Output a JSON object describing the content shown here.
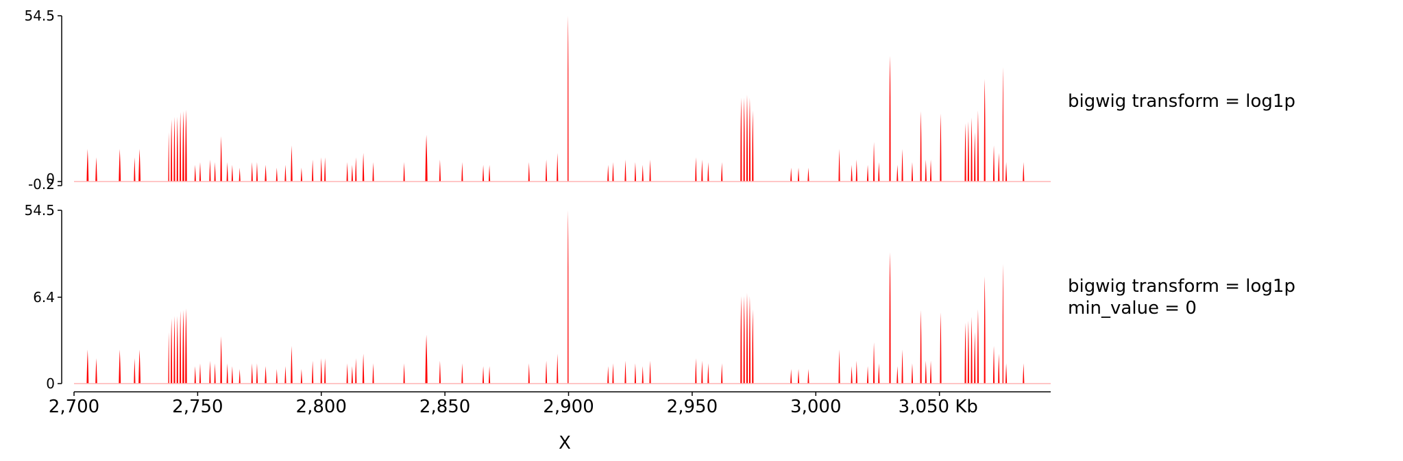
{
  "colors": {
    "signal": "#ff0000",
    "axis": "#000000",
    "baseline": "#ffb3b3"
  },
  "chart_data": {
    "type": "area",
    "x_unit": "Kb",
    "xlabel": "X",
    "xlim": [
      2700,
      3095
    ],
    "x_ticks": [
      {
        "value": 2700,
        "label": "2,700"
      },
      {
        "value": 2750,
        "label": "2,750"
      },
      {
        "value": 2800,
        "label": "2,800"
      },
      {
        "value": 2850,
        "label": "2,850"
      },
      {
        "value": 2900,
        "label": "2,900"
      },
      {
        "value": 2950,
        "label": "2,950"
      },
      {
        "value": 3000,
        "label": "3,000"
      },
      {
        "value": 3050,
        "label": "3,050 Kb"
      }
    ],
    "tracks": [
      {
        "label_lines": [
          "bigwig transform = log1p"
        ],
        "transform": "log1p",
        "ylim": [
          -0.2,
          54.5
        ],
        "y_ticks": [
          {
            "value": 54.5,
            "label": "54.5"
          },
          {
            "value": 0,
            "label": "0"
          },
          {
            "value": -0.2,
            "label": "-0.2"
          }
        ],
        "peaks": [
          [
            2705.5,
            0.4,
            1.2
          ],
          [
            2709,
            0.35,
            0.8
          ],
          [
            2718.5,
            0.4,
            1.2
          ],
          [
            2724.5,
            0.3,
            0.8
          ],
          [
            2726.5,
            0.4,
            1.2
          ],
          [
            2738.3,
            0.2,
            2.3
          ],
          [
            2739.4,
            0.3,
            3.5
          ],
          [
            2740.6,
            0.3,
            3.8
          ],
          [
            2741.8,
            0.3,
            3.8
          ],
          [
            2743,
            0.3,
            4.4
          ],
          [
            2744.2,
            0.35,
            4.5
          ],
          [
            2745.3,
            0.35,
            4.7
          ],
          [
            2749,
            0.3,
            0.5
          ],
          [
            2751,
            0.3,
            0.6
          ],
          [
            2755,
            0.3,
            0.7
          ],
          [
            2757,
            0.3,
            0.6
          ],
          [
            2759.5,
            0.35,
            2.0
          ],
          [
            2762,
            0.3,
            0.6
          ],
          [
            2764,
            0.3,
            0.5
          ],
          [
            2767,
            0.3,
            0.4
          ],
          [
            2772,
            0.3,
            0.6
          ],
          [
            2774,
            0.3,
            0.6
          ],
          [
            2777.5,
            0.35,
            0.5
          ],
          [
            2782,
            0.3,
            0.4
          ],
          [
            2785.5,
            0.3,
            0.5
          ],
          [
            2788,
            0.35,
            1.4
          ],
          [
            2792,
            0.3,
            0.4
          ],
          [
            2796.5,
            0.3,
            0.7
          ],
          [
            2800,
            0.3,
            0.8
          ],
          [
            2801.5,
            0.3,
            0.8
          ],
          [
            2810.5,
            0.3,
            0.6
          ],
          [
            2812.5,
            0.3,
            0.5
          ],
          [
            2814,
            0.3,
            0.8
          ],
          [
            2817,
            0.35,
            1.0
          ],
          [
            2821,
            0.3,
            0.6
          ],
          [
            2833.5,
            0.3,
            0.6
          ],
          [
            2842.5,
            0.45,
            2.1
          ],
          [
            2848,
            0.3,
            0.7
          ],
          [
            2857,
            0.3,
            0.6
          ],
          [
            2865.5,
            0.3,
            0.5
          ],
          [
            2868,
            0.3,
            0.5
          ],
          [
            2884,
            0.3,
            0.6
          ],
          [
            2891,
            0.3,
            0.7
          ],
          [
            2895.5,
            0.3,
            1.0
          ],
          [
            2899.8,
            0.2,
            54.5
          ],
          [
            2916,
            0.3,
            0.5
          ],
          [
            2918,
            0.3,
            0.6
          ],
          [
            2923,
            0.3,
            0.7
          ],
          [
            2927,
            0.3,
            0.6
          ],
          [
            2930,
            0.3,
            0.5
          ],
          [
            2933,
            0.3,
            0.7
          ],
          [
            2951.5,
            0.3,
            0.8
          ],
          [
            2954,
            0.3,
            0.7
          ],
          [
            2956.5,
            0.3,
            0.6
          ],
          [
            2962,
            0.3,
            0.6
          ],
          [
            2969.8,
            0.3,
            6.6
          ],
          [
            2971,
            0.3,
            6.6
          ],
          [
            2972.2,
            0.3,
            7.2
          ],
          [
            2973.3,
            0.3,
            6.6
          ],
          [
            2974.5,
            0.3,
            4.6
          ],
          [
            2990,
            0.3,
            0.4
          ],
          [
            2993,
            0.3,
            0.4
          ],
          [
            2997,
            0.3,
            0.4
          ],
          [
            3009.5,
            0.3,
            1.2
          ],
          [
            3014.5,
            0.3,
            0.5
          ],
          [
            3016.5,
            0.3,
            0.7
          ],
          [
            3021,
            0.3,
            0.5
          ],
          [
            3023.5,
            0.3,
            1.6
          ],
          [
            3025.5,
            0.3,
            0.6
          ],
          [
            3030,
            0.3,
            20.0
          ],
          [
            3033,
            0.3,
            0.5
          ],
          [
            3035,
            0.3,
            1.2
          ],
          [
            3039,
            0.3,
            0.6
          ],
          [
            3042.5,
            0.3,
            4.5
          ],
          [
            3044.5,
            0.3,
            0.7
          ],
          [
            3046.5,
            0.3,
            0.7
          ],
          [
            3050.5,
            0.3,
            4.2
          ],
          [
            3060.5,
            0.3,
            3.1
          ],
          [
            3061.7,
            0.3,
            3.3
          ],
          [
            3063,
            0.3,
            3.7
          ],
          [
            3064.3,
            0.3,
            2.3
          ],
          [
            3065.6,
            0.3,
            4.6
          ],
          [
            3068.3,
            0.3,
            11.0
          ],
          [
            3072,
            0.3,
            1.4
          ],
          [
            3074,
            0.3,
            1.0
          ],
          [
            3075.7,
            0.2,
            15.0
          ],
          [
            3077,
            0.3,
            0.6
          ],
          [
            3084,
            0.3,
            0.6
          ]
        ]
      },
      {
        "label_lines": [
          "bigwig transform = log1p",
          "min_value = 0"
        ],
        "transform": "log1p",
        "min_value": 0,
        "ylim": [
          0,
          54.5
        ],
        "y_ticks": [
          {
            "value": 54.5,
            "label": "54.5"
          },
          {
            "value": 6.4,
            "label": "6.4"
          },
          {
            "value": 0,
            "label": "0"
          }
        ],
        "peaks": [
          [
            2705.5,
            0.4,
            1.2
          ],
          [
            2709,
            0.35,
            0.8
          ],
          [
            2718.5,
            0.4,
            1.2
          ],
          [
            2724.5,
            0.3,
            0.8
          ],
          [
            2726.5,
            0.4,
            1.2
          ],
          [
            2738.3,
            0.2,
            2.3
          ],
          [
            2739.4,
            0.3,
            3.5
          ],
          [
            2740.6,
            0.3,
            3.8
          ],
          [
            2741.8,
            0.3,
            3.8
          ],
          [
            2743,
            0.3,
            4.4
          ],
          [
            2744.2,
            0.35,
            4.5
          ],
          [
            2745.3,
            0.35,
            4.7
          ],
          [
            2749,
            0.3,
            0.5
          ],
          [
            2751,
            0.3,
            0.6
          ],
          [
            2755,
            0.3,
            0.7
          ],
          [
            2757,
            0.3,
            0.6
          ],
          [
            2759.5,
            0.35,
            2.0
          ],
          [
            2762,
            0.3,
            0.6
          ],
          [
            2764,
            0.3,
            0.5
          ],
          [
            2767,
            0.3,
            0.4
          ],
          [
            2772,
            0.3,
            0.6
          ],
          [
            2774,
            0.3,
            0.6
          ],
          [
            2777.5,
            0.35,
            0.5
          ],
          [
            2782,
            0.3,
            0.4
          ],
          [
            2785.5,
            0.3,
            0.5
          ],
          [
            2788,
            0.35,
            1.4
          ],
          [
            2792,
            0.3,
            0.4
          ],
          [
            2796.5,
            0.3,
            0.7
          ],
          [
            2800,
            0.3,
            0.8
          ],
          [
            2801.5,
            0.3,
            0.8
          ],
          [
            2810.5,
            0.3,
            0.6
          ],
          [
            2812.5,
            0.3,
            0.5
          ],
          [
            2814,
            0.3,
            0.8
          ],
          [
            2817,
            0.35,
            1.0
          ],
          [
            2821,
            0.3,
            0.6
          ],
          [
            2833.5,
            0.3,
            0.6
          ],
          [
            2842.5,
            0.45,
            2.1
          ],
          [
            2848,
            0.3,
            0.7
          ],
          [
            2857,
            0.3,
            0.6
          ],
          [
            2865.5,
            0.3,
            0.5
          ],
          [
            2868,
            0.3,
            0.5
          ],
          [
            2884,
            0.3,
            0.6
          ],
          [
            2891,
            0.3,
            0.7
          ],
          [
            2895.5,
            0.3,
            1.0
          ],
          [
            2899.8,
            0.2,
            54.5
          ],
          [
            2916,
            0.3,
            0.5
          ],
          [
            2918,
            0.3,
            0.6
          ],
          [
            2923,
            0.3,
            0.7
          ],
          [
            2927,
            0.3,
            0.6
          ],
          [
            2930,
            0.3,
            0.5
          ],
          [
            2933,
            0.3,
            0.7
          ],
          [
            2951.5,
            0.3,
            0.8
          ],
          [
            2954,
            0.3,
            0.7
          ],
          [
            2956.5,
            0.3,
            0.6
          ],
          [
            2962,
            0.3,
            0.6
          ],
          [
            2969.8,
            0.3,
            6.6
          ],
          [
            2971,
            0.3,
            6.6
          ],
          [
            2972.2,
            0.3,
            7.2
          ],
          [
            2973.3,
            0.3,
            6.6
          ],
          [
            2974.5,
            0.3,
            4.6
          ],
          [
            2990,
            0.3,
            0.4
          ],
          [
            2993,
            0.3,
            0.4
          ],
          [
            2997,
            0.3,
            0.4
          ],
          [
            3009.5,
            0.3,
            1.2
          ],
          [
            3014.5,
            0.3,
            0.5
          ],
          [
            3016.5,
            0.3,
            0.7
          ],
          [
            3021,
            0.3,
            0.5
          ],
          [
            3023.5,
            0.3,
            1.6
          ],
          [
            3025.5,
            0.3,
            0.6
          ],
          [
            3030,
            0.3,
            20.0
          ],
          [
            3033,
            0.3,
            0.5
          ],
          [
            3035,
            0.3,
            1.2
          ],
          [
            3039,
            0.3,
            0.6
          ],
          [
            3042.5,
            0.3,
            4.5
          ],
          [
            3044.5,
            0.3,
            0.7
          ],
          [
            3046.5,
            0.3,
            0.7
          ],
          [
            3050.5,
            0.3,
            4.2
          ],
          [
            3060.5,
            0.3,
            3.1
          ],
          [
            3061.7,
            0.3,
            3.3
          ],
          [
            3063,
            0.3,
            3.7
          ],
          [
            3064.3,
            0.3,
            2.3
          ],
          [
            3065.6,
            0.3,
            4.6
          ],
          [
            3068.3,
            0.3,
            11.0
          ],
          [
            3072,
            0.3,
            1.4
          ],
          [
            3074,
            0.3,
            1.0
          ],
          [
            3075.7,
            0.2,
            15.0
          ],
          [
            3077,
            0.3,
            0.6
          ],
          [
            3084,
            0.3,
            0.6
          ]
        ]
      }
    ]
  }
}
